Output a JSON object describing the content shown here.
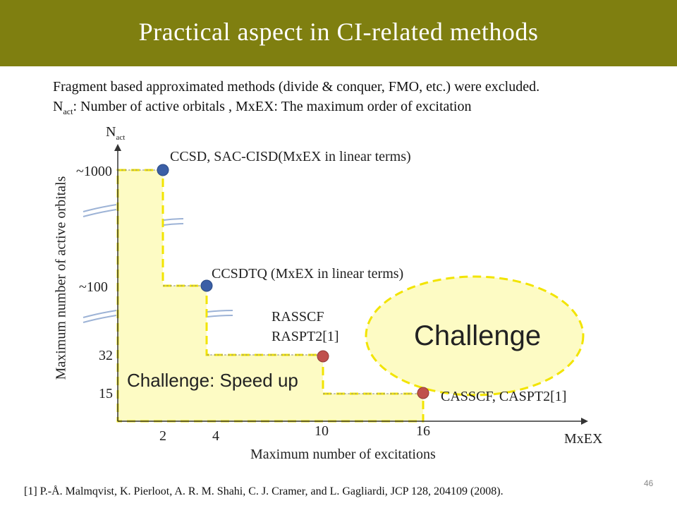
{
  "slide": {
    "title": "Practical aspect in CI-related methods",
    "note_line1": "Fragment based approximated methods (divide & conquer, FMO, etc.) were excluded.",
    "note_n": "N",
    "note_n_sub": "act",
    "note_line2_rest": ": Number of active orbitals ,     MxEX: The maximum order of excitation",
    "reference": "[1] P.-Å. Malmqvist, K. Pierloot, A. R. M. Shahi, C. J. Cramer, and L. Gagliardi, JCP 128, 204109 (2008).",
    "page_number": "46"
  },
  "axes": {
    "y_symbol": "N",
    "y_symbol_sub": "act",
    "y_title": "Maximum number of active orbitals",
    "x_symbol": "MxEX",
    "x_title": "Maximum number of excitations",
    "y_ticks": [
      "~1000",
      "~100",
      "32",
      "15"
    ],
    "x_ticks": [
      "2",
      "4",
      "10",
      "16"
    ]
  },
  "methods": [
    {
      "label": "CCSD, SAC-CISD(MxEX in linear terms)",
      "color": "#3b5fa6"
    },
    {
      "label": "CCSDTQ (MxEX in linear terms)",
      "color": "#3b5fa6"
    },
    {
      "label_line1": "RASSCF",
      "label_line2": "RASPT2[1]",
      "color": "#c0504d"
    },
    {
      "label": "CASSCF, CASPT2[1]",
      "color": "#c0504d"
    }
  ],
  "regions": {
    "speed_up_label": "Challenge:  Speed up",
    "challenge_label": "Challenge",
    "fill_color": "#fdfbc4",
    "border_color": "#f2e400"
  }
}
